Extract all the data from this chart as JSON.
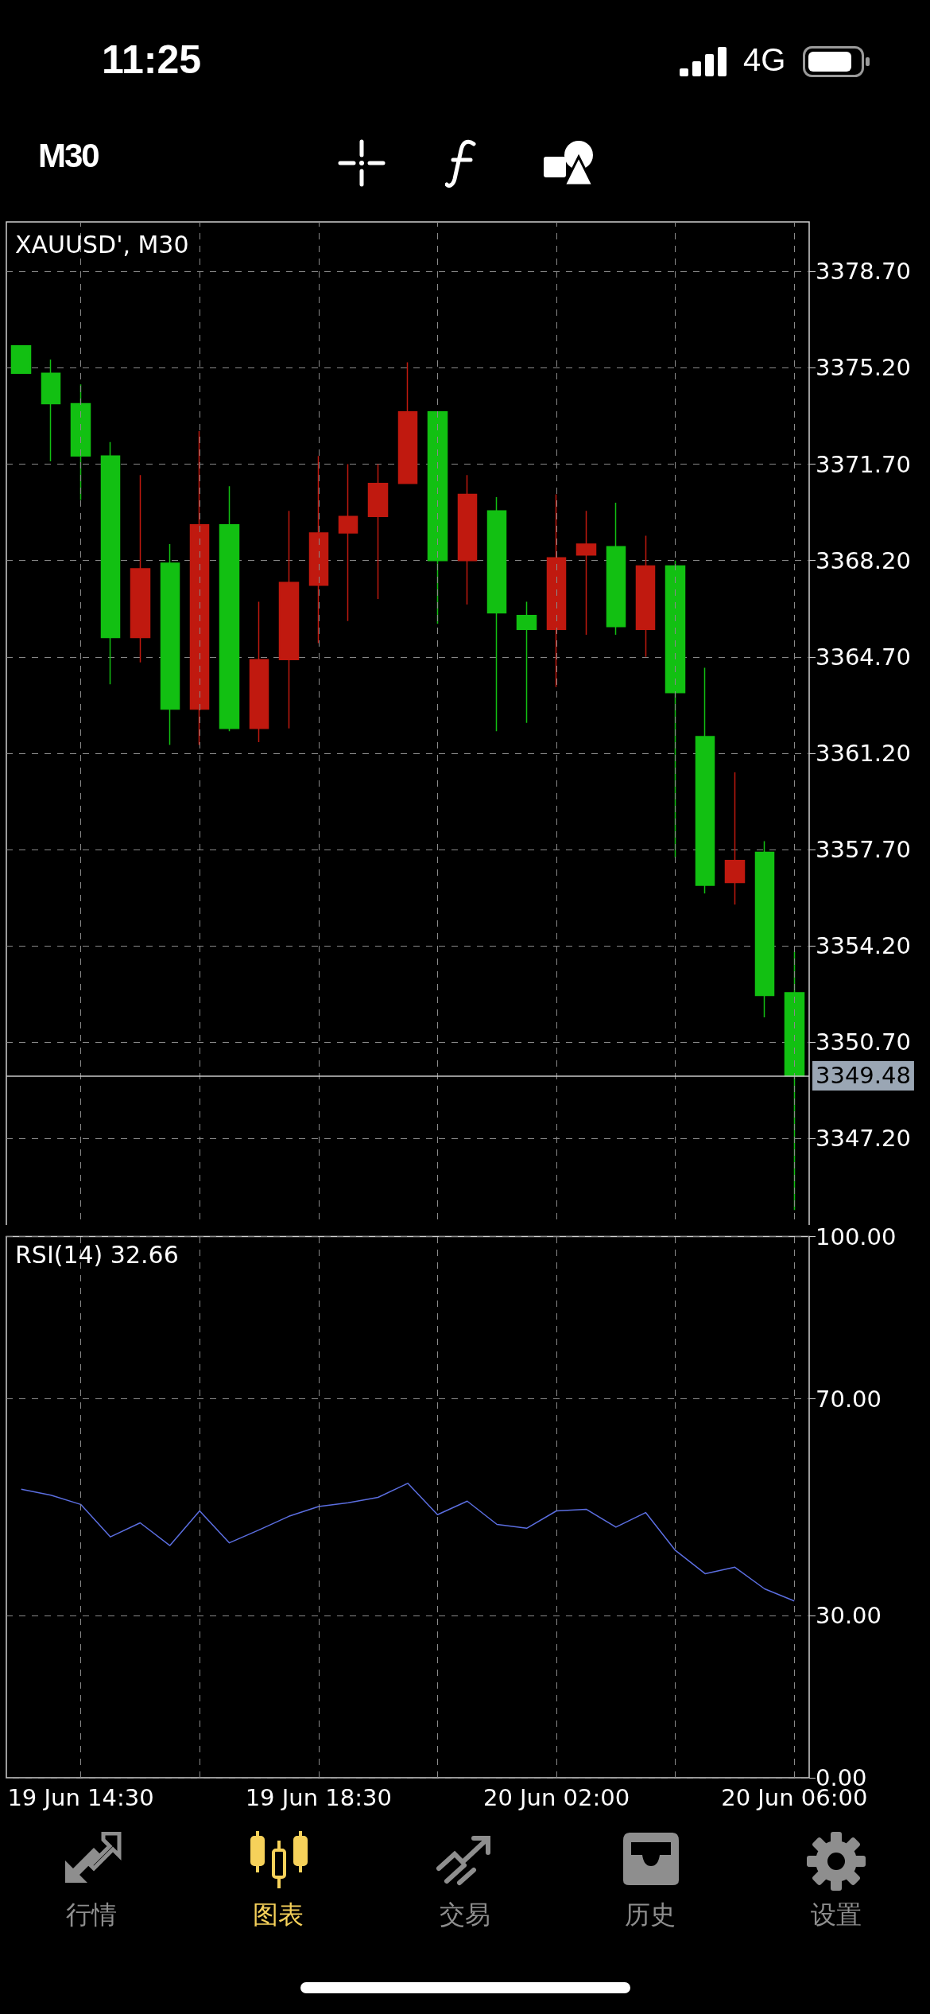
{
  "chart_data": [
    {
      "type": "candlestick",
      "title": "XAUUSD', M30",
      "categories": [
        null,
        null,
        null,
        null,
        null,
        null,
        null,
        null,
        null,
        null,
        null,
        null,
        null,
        null,
        null,
        null,
        null,
        null,
        null,
        null,
        null,
        null,
        null,
        null,
        null,
        null,
        null
      ],
      "ohlc": [
        [
          3376.0,
          3376.0,
          3375.0,
          3375.0
        ],
        [
          3375.0,
          3375.5,
          3371.8,
          3373.9
        ],
        [
          3373.9,
          3374.6,
          3370.4,
          3372.0
        ],
        [
          3372.0,
          3372.5,
          3363.7,
          3365.4
        ],
        [
          3365.4,
          3371.3,
          3364.5,
          3367.9
        ],
        [
          3368.1,
          3368.8,
          3361.5,
          3362.8
        ],
        [
          3362.8,
          3372.9,
          3361.5,
          3369.5
        ],
        [
          3369.5,
          3370.9,
          3362.0,
          3362.1
        ],
        [
          3362.1,
          3366.7,
          3361.6,
          3364.6
        ],
        [
          3364.6,
          3370.0,
          3362.1,
          3367.4
        ],
        [
          3367.3,
          3372.0,
          3365.2,
          3369.2
        ],
        [
          3369.2,
          3371.7,
          3366.0,
          3369.8
        ],
        [
          3369.8,
          3371.7,
          3366.8,
          3371.0
        ],
        [
          3371.0,
          3375.4,
          3371.0,
          3373.6
        ],
        [
          3373.6,
          3373.6,
          3365.9,
          3368.2
        ],
        [
          3368.2,
          3371.3,
          3366.6,
          3370.6
        ],
        [
          3370.0,
          3370.5,
          3362.0,
          3366.3
        ],
        [
          3366.2,
          3366.7,
          3362.3,
          3365.7
        ],
        [
          3365.7,
          3370.6,
          3363.6,
          3368.3
        ],
        [
          3368.4,
          3370.0,
          3365.5,
          3368.8
        ],
        [
          3368.7,
          3370.3,
          3365.5,
          3365.8
        ],
        [
          3365.7,
          3369.1,
          3364.7,
          3368.0
        ],
        [
          3368.0,
          3368.2,
          3357.4,
          3363.4
        ],
        [
          3361.8,
          3364.3,
          3356.1,
          3356.4
        ],
        [
          3356.5,
          3360.5,
          3355.7,
          3357.3
        ],
        [
          3357.6,
          3358.0,
          3351.6,
          3352.4
        ],
        [
          3352.5,
          3354.0,
          3344.6,
          3349.48
        ]
      ],
      "colors": [
        "#12c012",
        "#12c012",
        "#12c012",
        "#12c012",
        "#c0190f",
        "#12c012",
        "#c0190f",
        "#12c012",
        "#c0190f",
        "#c0190f",
        "#c0190f",
        "#c0190f",
        "#c0190f",
        "#c0190f",
        "#12c012",
        "#c0190f",
        "#12c012",
        "#12c012",
        "#c0190f",
        "#c0190f",
        "#12c012",
        "#c0190f",
        "#12c012",
        "#12c012",
        "#c0190f",
        "#12c012",
        "#12c012"
      ],
      "ylim": [
        3343.8,
        3380.5
      ],
      "yticks": [
        {
          "value": 3378.7,
          "label": "3378.70"
        },
        {
          "value": 3375.2,
          "label": "3375.20"
        },
        {
          "value": 3371.7,
          "label": "3371.70"
        },
        {
          "value": 3368.2,
          "label": "3368.20"
        },
        {
          "value": 3364.7,
          "label": "3364.70"
        },
        {
          "value": 3361.2,
          "label": "3361.20"
        },
        {
          "value": 3357.7,
          "label": "3357.70"
        },
        {
          "value": 3354.2,
          "label": "3354.20"
        },
        {
          "value": 3350.7,
          "label": "3350.70"
        },
        {
          "value": 3347.2,
          "label": "3347.20"
        }
      ],
      "grid": true,
      "tick_labels": "y",
      "ref_lines": [
        {
          "axis": "y",
          "value": 3349.48,
          "label": "3349.48",
          "color": "#c8c8c8"
        }
      ],
      "annotations": [
        "11:25",
        "4G",
        "M30",
        "行情",
        "图表",
        "交易",
        "历史",
        "设置"
      ]
    },
    {
      "type": "line",
      "title": "RSI(14) 32.66",
      "categories": [
        null,
        null,
        "19 Jun 14:30",
        null,
        null,
        null,
        null,
        null,
        null,
        null,
        "19 Jun 18:30",
        null,
        null,
        null,
        null,
        null,
        null,
        null,
        "20 Jun 02:00",
        null,
        null,
        null,
        null,
        null,
        null,
        null,
        "20 Jun 06:00"
      ],
      "series": [
        {
          "color": "#5b6ee0",
          "values": [
            53.3,
            52.2,
            50.5,
            44.5,
            47.1,
            42.9,
            49.3,
            43.4,
            45.8,
            48.3,
            50.1,
            50.8,
            51.8,
            54.4,
            48.6,
            51.1,
            46.8,
            46.1,
            49.3,
            49.6,
            46.3,
            49.0,
            42.0,
            37.7,
            38.9,
            34.9,
            32.66
          ]
        }
      ],
      "ylim": [
        0,
        100
      ],
      "yticks": [
        {
          "value": 100,
          "label": "100.00"
        },
        {
          "value": 70,
          "label": "70.00"
        },
        {
          "value": 30,
          "label": "30.00"
        },
        {
          "value": 0,
          "label": "0.00"
        }
      ],
      "grid": true,
      "marker": "none"
    }
  ]
}
